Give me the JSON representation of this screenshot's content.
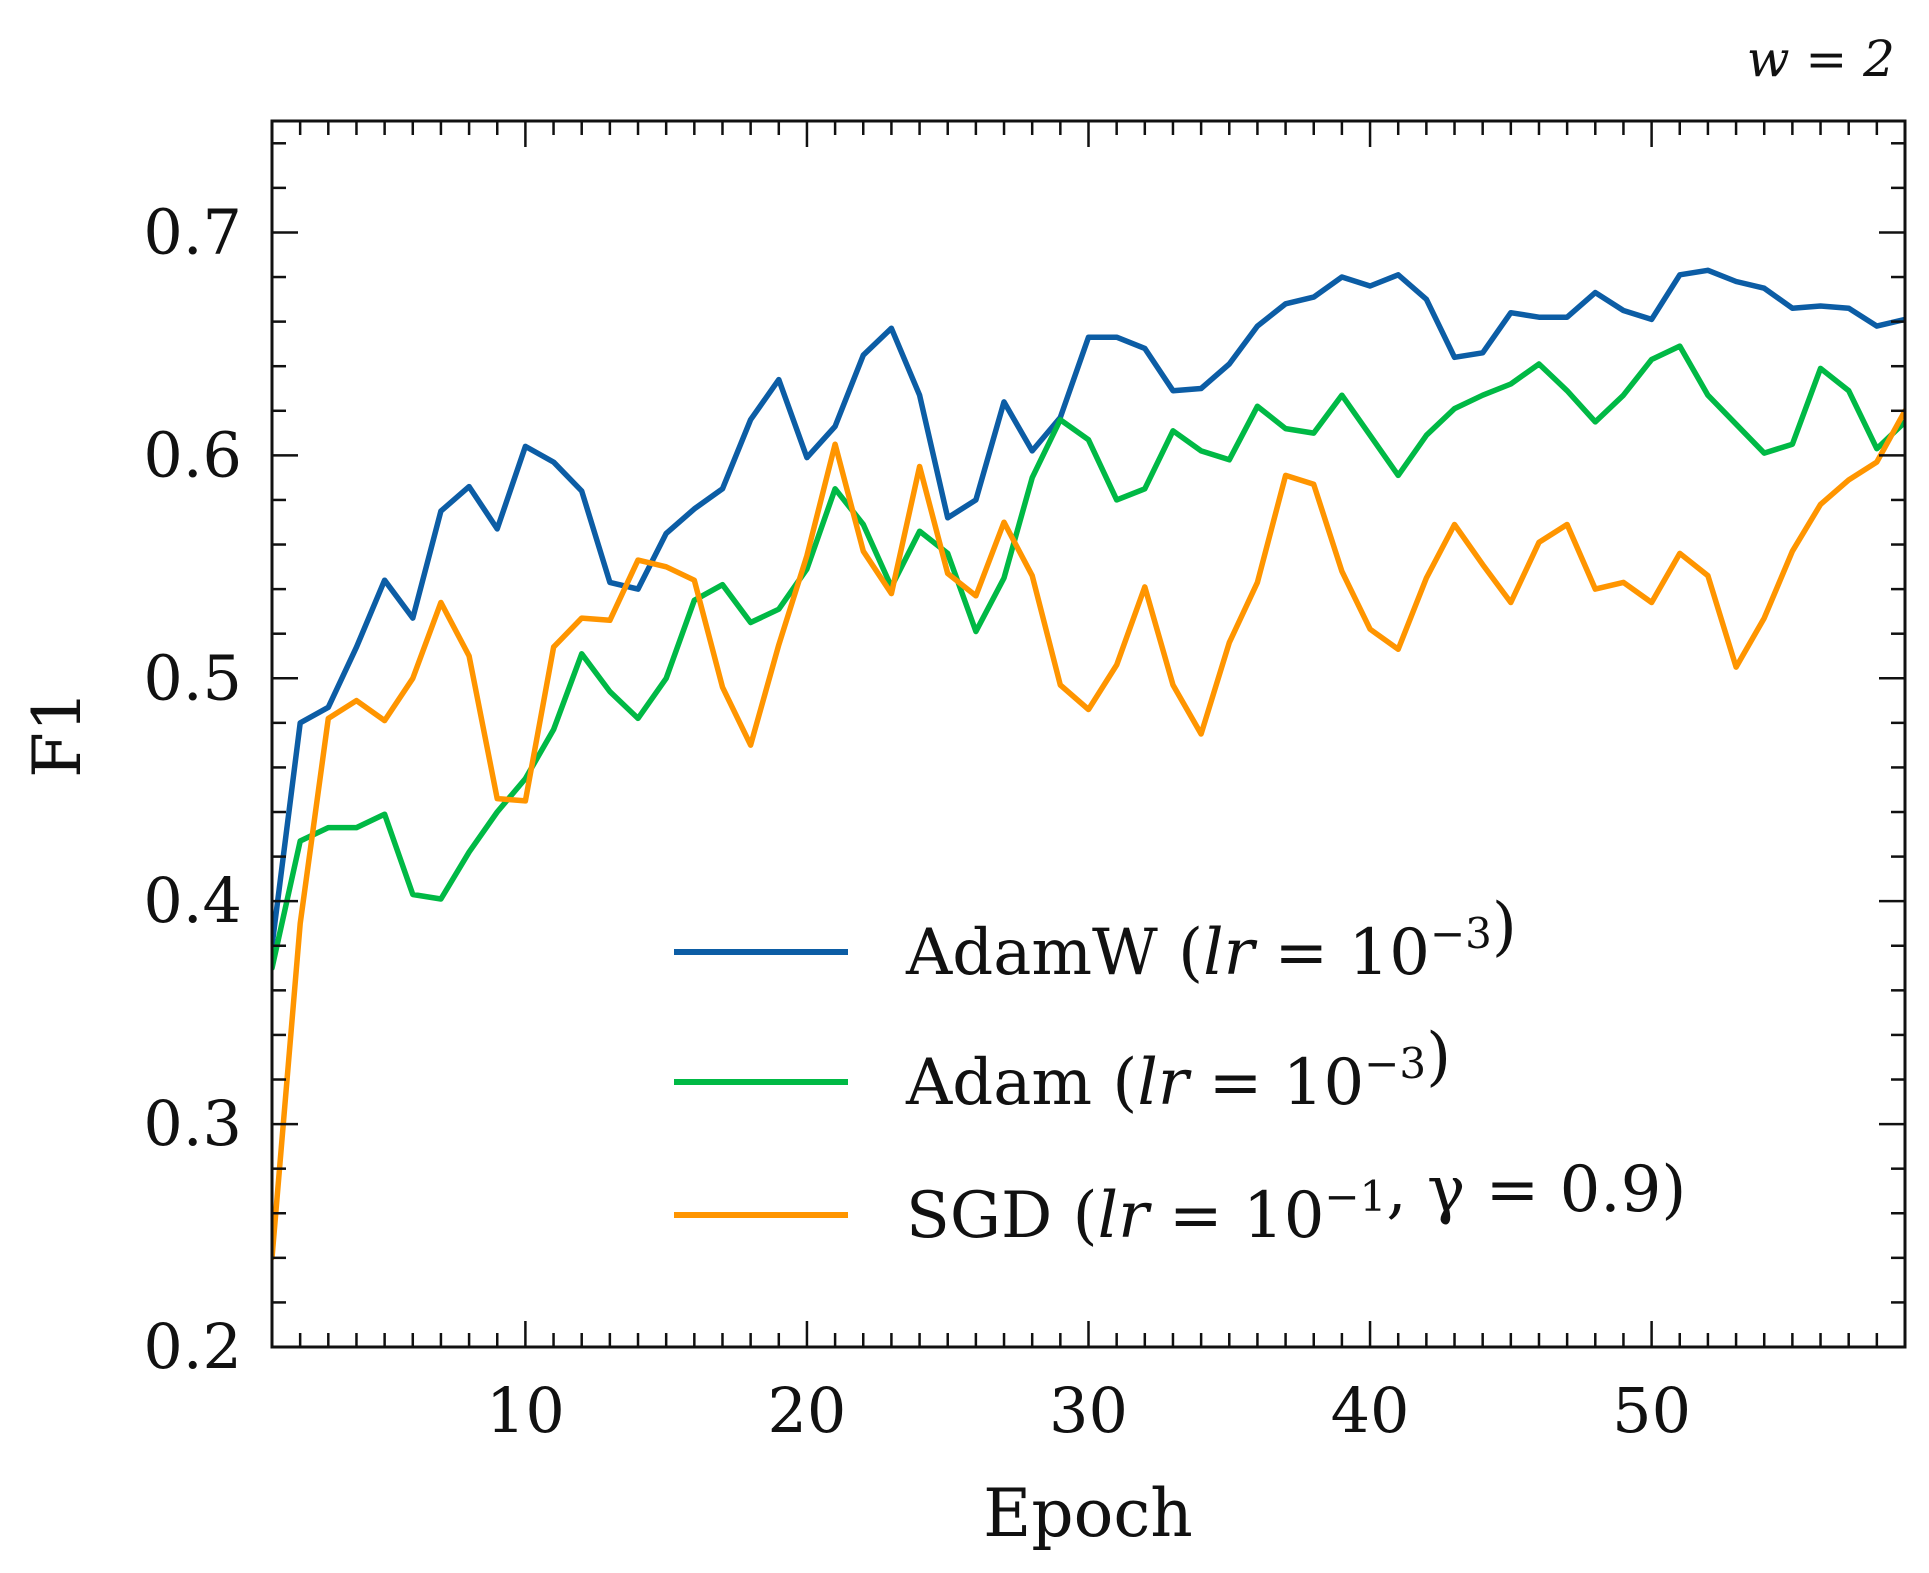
{
  "chart_data": {
    "type": "line",
    "annotation": "w = 2",
    "xlabel": "Epoch",
    "ylabel": "F1",
    "xlim": [
      1,
      59
    ],
    "ylim": [
      0.2,
      0.75
    ],
    "xticks": [
      10,
      20,
      30,
      40,
      50
    ],
    "yticks": [
      0.2,
      0.3,
      0.4,
      0.5,
      0.6,
      0.7
    ],
    "ytick_labels": [
      "0.2",
      "0.3",
      "0.4",
      "0.5",
      "0.6",
      "0.7"
    ],
    "xtick_labels": [
      "10",
      "20",
      "30",
      "40",
      "50"
    ],
    "grid": false,
    "legend_position": "lower-right",
    "x": [
      1,
      2,
      3,
      4,
      5,
      6,
      7,
      8,
      9,
      10,
      11,
      12,
      13,
      14,
      15,
      16,
      17,
      18,
      19,
      20,
      21,
      22,
      23,
      24,
      25,
      26,
      27,
      28,
      29,
      30,
      31,
      32,
      33,
      34,
      35,
      36,
      37,
      38,
      39,
      40,
      41,
      42,
      43,
      44,
      45,
      46,
      47,
      48,
      49,
      50,
      51,
      52,
      53,
      54,
      55,
      56,
      57,
      58,
      59
    ],
    "series": [
      {
        "name": "AdamW (lr = 10^-3)",
        "name_main": "AdamW (",
        "name_var": "lr",
        "name_mid": " = 10",
        "name_sup": "−3",
        "name_end": ")",
        "color": "#0C5DA5",
        "values": [
          0.38,
          0.48,
          0.487,
          0.514,
          0.544,
          0.527,
          0.575,
          0.586,
          0.567,
          0.604,
          0.597,
          0.584,
          0.543,
          0.54,
          0.565,
          0.576,
          0.585,
          0.616,
          0.634,
          0.599,
          0.613,
          0.645,
          0.657,
          0.627,
          0.572,
          0.58,
          0.624,
          0.602,
          0.617,
          0.653,
          0.653,
          0.648,
          0.629,
          0.63,
          0.641,
          0.658,
          0.668,
          0.671,
          0.68,
          0.676,
          0.681,
          0.67,
          0.644,
          0.646,
          0.664,
          0.662,
          0.662,
          0.673,
          0.665,
          0.661,
          0.681,
          0.683,
          0.678,
          0.675,
          0.666,
          0.667,
          0.666,
          0.658,
          0.661
        ]
      },
      {
        "name": "Adam (lr = 10^-3)",
        "name_main": "Adam (",
        "name_var": "lr",
        "name_mid": " = 10",
        "name_sup": "−3",
        "name_end": ")",
        "color": "#00B945",
        "values": [
          0.37,
          0.427,
          0.433,
          0.433,
          0.439,
          0.403,
          0.401,
          0.422,
          0.44,
          0.455,
          0.477,
          0.511,
          0.494,
          0.482,
          0.5,
          0.535,
          0.542,
          0.525,
          0.531,
          0.549,
          0.585,
          0.569,
          0.541,
          0.566,
          0.556,
          0.521,
          0.545,
          0.59,
          0.616,
          0.607,
          0.58,
          0.585,
          0.611,
          0.602,
          0.598,
          0.622,
          0.612,
          0.61,
          0.627,
          0.609,
          0.591,
          0.609,
          0.621,
          0.627,
          0.632,
          0.641,
          0.629,
          0.615,
          0.627,
          0.643,
          0.649,
          0.627,
          0.614,
          0.601,
          0.605,
          0.639,
          0.629,
          0.603,
          0.615
        ]
      },
      {
        "name": "SGD (lr = 10^-1, γ = 0.9)",
        "name_main": "SGD (",
        "name_var": "lr",
        "name_mid": " = 10",
        "name_sup": "−1",
        "name_end": ", γ = 0.9)",
        "color": "#FF9500",
        "values": [
          0.24,
          0.39,
          0.482,
          0.49,
          0.481,
          0.5,
          0.534,
          0.51,
          0.446,
          0.445,
          0.514,
          0.527,
          0.526,
          0.553,
          0.55,
          0.544,
          0.496,
          0.47,
          0.515,
          0.555,
          0.605,
          0.557,
          0.538,
          0.595,
          0.547,
          0.537,
          0.57,
          0.546,
          0.497,
          0.486,
          0.506,
          0.541,
          0.497,
          0.475,
          0.516,
          0.543,
          0.591,
          0.587,
          0.548,
          0.522,
          0.513,
          0.545,
          0.569,
          0.551,
          0.534,
          0.561,
          0.569,
          0.54,
          0.543,
          0.534,
          0.556,
          0.546,
          0.505,
          0.527,
          0.557,
          0.578,
          0.589,
          0.597,
          0.62
        ]
      }
    ]
  }
}
